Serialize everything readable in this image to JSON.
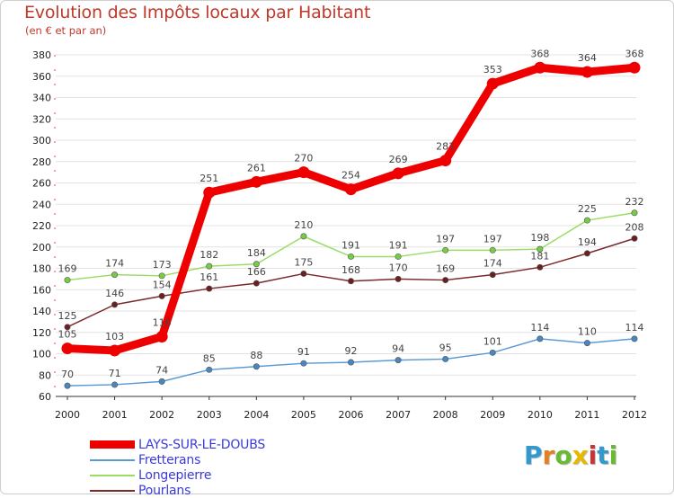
{
  "header": {
    "title": "Evolution des Impôts locaux par Habitant",
    "subtitle": "(en € et par an)"
  },
  "logo": {
    "letters": [
      "P",
      "r",
      "o",
      "x",
      "i",
      "t",
      "i"
    ],
    "colors": [
      "#3399cc",
      "#e67e22",
      "#66bb33",
      "#e6b800",
      "#cc3333",
      "#3399cc",
      "#66bb33"
    ]
  },
  "chart_data": {
    "type": "line",
    "title": "Evolution des Impôts locaux par Habitant",
    "subtitle": "(en € et par an)",
    "x": [
      "2000",
      "2001",
      "2002",
      "2003",
      "2004",
      "2005",
      "2006",
      "2007",
      "2008",
      "2009",
      "2010",
      "2011",
      "2012"
    ],
    "ylim": [
      60,
      380
    ],
    "yticks": [
      60,
      80,
      100,
      120,
      140,
      160,
      180,
      200,
      220,
      240,
      260,
      280,
      300,
      320,
      340,
      360,
      380
    ],
    "grid": "horizontal",
    "legend_position": "bottom-left",
    "series": [
      {
        "name": "Fretterans",
        "color": "#5b9bd5",
        "point_color": "#4a86c0",
        "values": [
          70,
          71,
          74,
          85,
          88,
          91,
          92,
          94,
          95,
          101,
          114,
          110,
          114
        ],
        "labels": [
          "70",
          "71",
          "74",
          "85",
          "88",
          "91",
          "92",
          "94",
          "95",
          "101",
          "114",
          "110",
          "114"
        ]
      },
      {
        "name": "Longepierre",
        "color": "#99dd66",
        "point_color": "#77cc44",
        "values": [
          169,
          174,
          173,
          182,
          184,
          210,
          191,
          191,
          197,
          197,
          198,
          225,
          232
        ],
        "labels": [
          "169",
          "174",
          "173",
          "182",
          "184",
          "210",
          "191",
          "191",
          "197",
          "197",
          "198",
          "225",
          "232"
        ]
      },
      {
        "name": "Pourlans",
        "color": "#7a2a2a",
        "point_color": "#6b1f1f",
        "values": [
          125,
          146,
          154,
          161,
          166,
          175,
          168,
          170,
          169,
          174,
          181,
          194,
          208
        ],
        "labels": [
          "125",
          "146",
          "154",
          "161",
          "166",
          "175",
          "168",
          "170",
          "169",
          "174",
          "181",
          "194",
          "208"
        ]
      },
      {
        "name": "LAYS-SUR-LE-DOUBS",
        "color": "#ee0000",
        "point_color": "#ee0000",
        "values": [
          105,
          103,
          116,
          251,
          261,
          270,
          254,
          269,
          281,
          353,
          368,
          364,
          368
        ],
        "labels": [
          "105",
          "103",
          "116",
          "251",
          "261",
          "270",
          "254",
          "269",
          "281",
          "353",
          "368",
          "364",
          "368"
        ]
      }
    ],
    "legend_order": [
      "LAYS-SUR-LE-DOUBS",
      "Fretterans",
      "Longepierre",
      "Pourlans"
    ]
  }
}
